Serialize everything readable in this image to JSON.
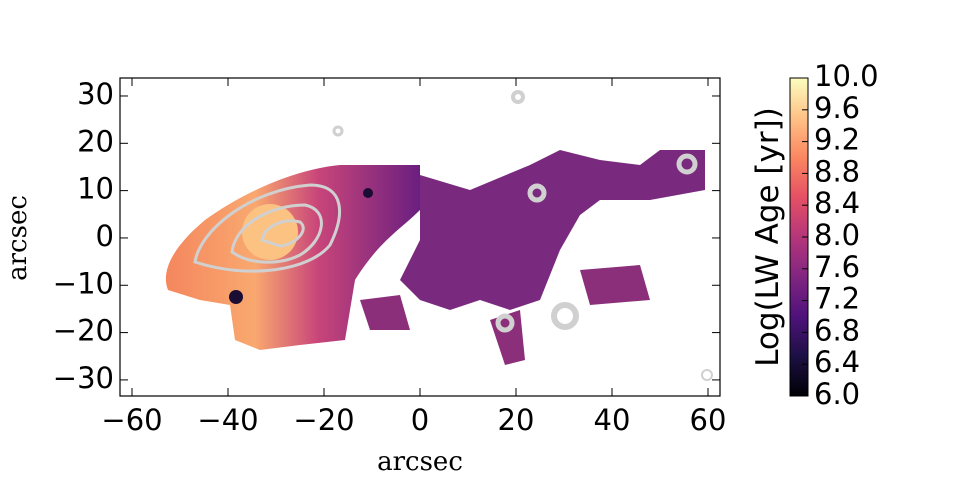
{
  "chart_data": {
    "type": "image",
    "xlabel": "arcsec",
    "ylabel": "arcsec",
    "xlim": [
      -62.5,
      62.5
    ],
    "xticks": [
      {
        "value": -60,
        "label": "−60"
      },
      {
        "value": -40,
        "label": "−40"
      },
      {
        "value": -20,
        "label": "−20"
      },
      0,
      20,
      40,
      60
    ],
    "ylim": [
      -33.4,
      33.8
    ],
    "yticks": [
      30,
      20,
      10,
      0,
      {
        "value": -10,
        "label": "−10"
      },
      {
        "value": -20,
        "label": "−20"
      },
      {
        "value": -30,
        "label": "−30"
      }
    ],
    "colorbar": {
      "label": "Log(LW Age [yr])",
      "colormap": "magma",
      "lim": [
        6,
        10
      ],
      "ticks": [
        {
          "value": 6,
          "label": "6.0"
        },
        6.4,
        6.8,
        7.2,
        7.6,
        {
          "value": 8,
          "label": "8.0"
        },
        8.4,
        8.8,
        9.2,
        9.6,
        {
          "value": 10,
          "label": "10.0"
        }
      ]
    }
  }
}
